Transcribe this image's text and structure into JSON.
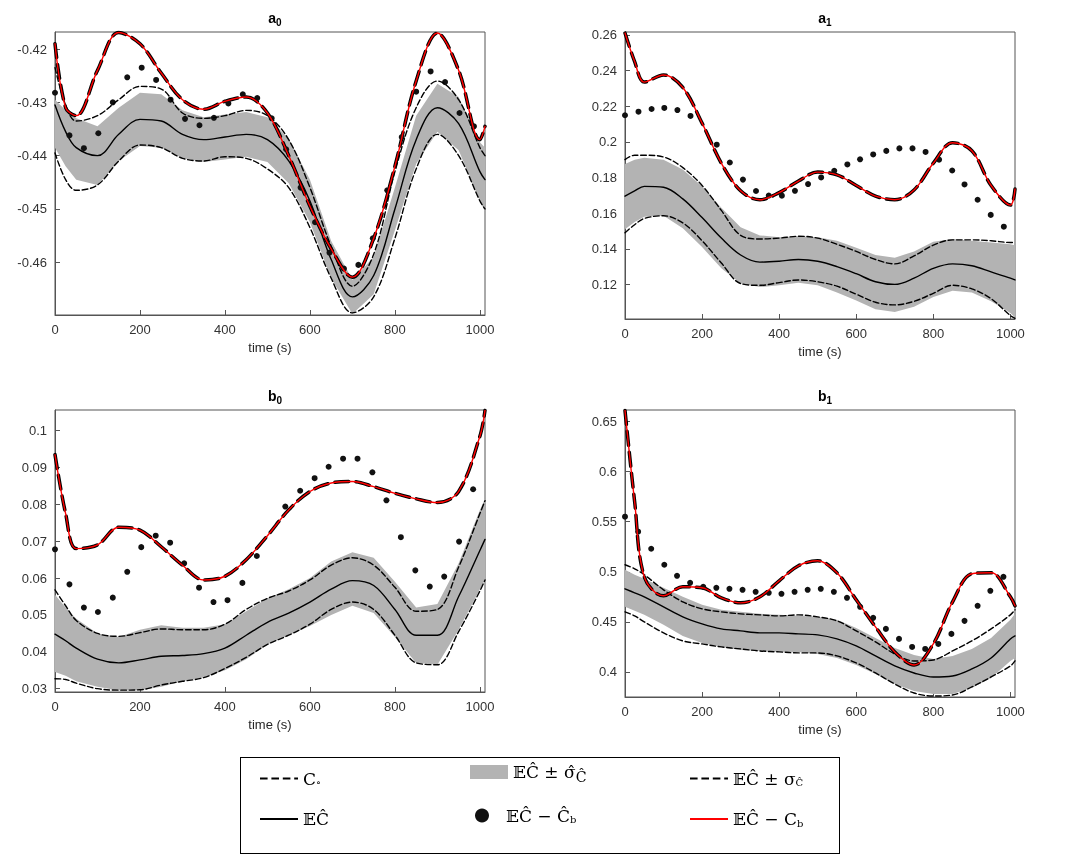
{
  "chart_data": [
    {
      "type": "line",
      "title": "a$_{0}$",
      "xlabel": "time (s)",
      "xlim": [
        0,
        1012
      ],
      "xticks": [
        0,
        200,
        400,
        600,
        800,
        1000
      ],
      "ylim": [
        -0.4699,
        -0.4168
      ],
      "yticks": [
        -0.46,
        -0.45,
        -0.44,
        -0.43,
        -0.42
      ],
      "x": [
        0,
        25,
        50,
        100,
        150,
        200,
        250,
        300,
        350,
        400,
        450,
        500,
        550,
        600,
        650,
        700,
        750,
        800,
        850,
        900,
        950,
        1000,
        1012
      ],
      "series": [
        {
          "color": "#000000",
          "line_style": "dashed",
          "values": [
            -0.419,
            -0.431,
            -0.4325,
            -0.424,
            -0.4169,
            -0.419,
            -0.4245,
            -0.4295,
            -0.4313,
            -0.4298,
            -0.429,
            -0.432,
            -0.44,
            -0.4495,
            -0.4575,
            -0.4628,
            -0.4555,
            -0.442,
            -0.426,
            -0.417,
            -0.424,
            -0.437,
            -0.4345
          ]
        },
        {
          "color": "#000000",
          "line_style": "solid",
          "values": [
            -0.4305,
            -0.4355,
            -0.4385,
            -0.44,
            -0.436,
            -0.4332,
            -0.4335,
            -0.436,
            -0.437,
            -0.4365,
            -0.436,
            -0.437,
            -0.441,
            -0.4485,
            -0.4595,
            -0.4665,
            -0.4625,
            -0.45,
            -0.437,
            -0.431,
            -0.434,
            -0.443,
            -0.4445
          ],
          "upper": [
            -0.4295,
            -0.4315,
            -0.433,
            -0.4345,
            -0.431,
            -0.4282,
            -0.4285,
            -0.4315,
            -0.4328,
            -0.4323,
            -0.4318,
            -0.4328,
            -0.4368,
            -0.4445,
            -0.456,
            -0.4633,
            -0.459,
            -0.446,
            -0.4325,
            -0.4265,
            -0.429,
            -0.4375,
            -0.4385
          ],
          "lower": [
            -0.4385,
            -0.442,
            -0.4445,
            -0.4455,
            -0.441,
            -0.4382,
            -0.4385,
            -0.4405,
            -0.4412,
            -0.4407,
            -0.4402,
            -0.4412,
            -0.4452,
            -0.4525,
            -0.463,
            -0.4697,
            -0.466,
            -0.454,
            -0.4415,
            -0.4355,
            -0.439,
            -0.4485,
            -0.4505
          ]
        },
        {
          "type": "scatter",
          "marker": "circle",
          "color": "#111111",
          "x": [
            0,
            34,
            68,
            102,
            136,
            170,
            204,
            238,
            272,
            306,
            340,
            374,
            408,
            442,
            476,
            510,
            544,
            578,
            612,
            646,
            680,
            714,
            748,
            782,
            816,
            850,
            884,
            918,
            952,
            986
          ],
          "values": [
            -0.4282,
            -0.4362,
            -0.4386,
            -0.4358,
            -0.43,
            -0.4253,
            -0.4235,
            -0.4258,
            -0.4295,
            -0.4331,
            -0.4343,
            -0.4329,
            -0.4302,
            -0.4285,
            -0.4292,
            -0.433,
            -0.4388,
            -0.446,
            -0.4525,
            -0.4582,
            -0.4612,
            -0.4605,
            -0.4555,
            -0.4465,
            -0.4365,
            -0.428,
            -0.4242,
            -0.4262,
            -0.432,
            -0.4345
          ]
        },
        {
          "color": "#000000",
          "line_style": "dashed",
          "values": [
            -0.4235,
            -0.4305,
            -0.4335,
            -0.4325,
            -0.4295,
            -0.427,
            -0.4275,
            -0.432,
            -0.433,
            -0.4325,
            -0.4315,
            -0.4325,
            -0.437,
            -0.446,
            -0.457,
            -0.4645,
            -0.4585,
            -0.443,
            -0.431,
            -0.426,
            -0.4295,
            -0.4385,
            -0.44
          ]
        },
        {
          "color": "#000000",
          "line_style": "dashed",
          "values": [
            -0.4395,
            -0.4445,
            -0.4465,
            -0.4455,
            -0.441,
            -0.438,
            -0.4385,
            -0.4405,
            -0.441,
            -0.4402,
            -0.4405,
            -0.4425,
            -0.446,
            -0.4535,
            -0.463,
            -0.4695,
            -0.4665,
            -0.4555,
            -0.4425,
            -0.436,
            -0.44,
            -0.4485,
            -0.45
          ]
        },
        {
          "color": "#ff0000",
          "line_style": "solid",
          "values": [
            -0.419,
            -0.431,
            -0.4325,
            -0.424,
            -0.4169,
            -0.419,
            -0.4245,
            -0.4295,
            -0.4313,
            -0.4298,
            -0.429,
            -0.432,
            -0.44,
            -0.4495,
            -0.4575,
            -0.4628,
            -0.4555,
            -0.442,
            -0.426,
            -0.417,
            -0.424,
            -0.437,
            -0.4345
          ]
        }
      ]
    },
    {
      "type": "line",
      "title": "a$_{1}$",
      "xlabel": "time (s)",
      "xlim": [
        0,
        1012
      ],
      "xticks": [
        0,
        200,
        400,
        600,
        800,
        1000
      ],
      "ylim": [
        0.1006,
        0.2616
      ],
      "yticks": [
        0.12,
        0.14,
        0.16,
        0.18,
        0.2,
        0.22,
        0.24,
        0.26
      ],
      "x": [
        0,
        25,
        50,
        100,
        150,
        200,
        250,
        300,
        350,
        400,
        450,
        500,
        550,
        600,
        650,
        700,
        750,
        800,
        850,
        900,
        950,
        1000,
        1012
      ],
      "series": [
        {
          "color": "#000000",
          "line_style": "dashed",
          "values": [
            0.261,
            0.245,
            0.2335,
            0.2375,
            0.2305,
            0.2105,
            0.188,
            0.1725,
            0.1675,
            0.1715,
            0.178,
            0.183,
            0.1815,
            0.1755,
            0.1695,
            0.1675,
            0.173,
            0.188,
            0.1995,
            0.195,
            0.1755,
            0.1645,
            0.1735
          ]
        },
        {
          "color": "#000000",
          "line_style": "solid",
          "values": [
            0.1695,
            0.1725,
            0.175,
            0.1745,
            0.168,
            0.1575,
            0.146,
            0.1365,
            0.1325,
            0.133,
            0.134,
            0.133,
            0.13,
            0.126,
            0.1215,
            0.12,
            0.1235,
            0.129,
            0.1315,
            0.1305,
            0.127,
            0.1235,
            0.1225
          ],
          "upper": [
            0.1875,
            0.19,
            0.191,
            0.19,
            0.1845,
            0.175,
            0.163,
            0.152,
            0.1475,
            0.1465,
            0.147,
            0.1465,
            0.1445,
            0.1405,
            0.1365,
            0.135,
            0.1385,
            0.144,
            0.1455,
            0.1445,
            0.1435,
            0.1425,
            0.142
          ],
          "lower": [
            0.151,
            0.155,
            0.158,
            0.1585,
            0.1515,
            0.141,
            0.129,
            0.1205,
            0.1185,
            0.1195,
            0.121,
            0.1195,
            0.1155,
            0.111,
            0.106,
            0.1045,
            0.1075,
            0.113,
            0.1165,
            0.1155,
            0.1105,
            0.104,
            0.1015
          ]
        },
        {
          "type": "scatter",
          "marker": "circle",
          "color": "#111111",
          "x": [
            0,
            35,
            69,
            102,
            136,
            170,
            238,
            272,
            306,
            340,
            373,
            407,
            441,
            475,
            509,
            543,
            577,
            610,
            644,
            678,
            712,
            746,
            780,
            815,
            849,
            881,
            915,
            949,
            983
          ],
          "values": [
            0.2149,
            0.2169,
            0.2184,
            0.219,
            0.2178,
            0.2145,
            0.1984,
            0.1884,
            0.1788,
            0.1724,
            0.1698,
            0.1698,
            0.1725,
            0.1763,
            0.18,
            0.1837,
            0.1873,
            0.1902,
            0.1929,
            0.1949,
            0.1963,
            0.1963,
            0.1943,
            0.19,
            0.1839,
            0.1761,
            0.1675,
            0.159,
            0.1524
          ]
        },
        {
          "color": "#000000",
          "line_style": "dashed",
          "values": [
            0.19,
            0.1925,
            0.1925,
            0.1915,
            0.1855,
            0.1755,
            0.1615,
            0.1475,
            0.1455,
            0.146,
            0.147,
            0.146,
            0.1425,
            0.1385,
            0.134,
            0.1315,
            0.136,
            0.142,
            0.145,
            0.145,
            0.1445,
            0.1435,
            0.1435
          ]
        },
        {
          "color": "#000000",
          "line_style": "dashed",
          "values": [
            0.149,
            0.1535,
            0.157,
            0.1585,
            0.1545,
            0.1445,
            0.132,
            0.1205,
            0.1195,
            0.121,
            0.1225,
            0.1215,
            0.119,
            0.1145,
            0.11,
            0.1085,
            0.1105,
            0.115,
            0.1195,
            0.1175,
            0.112,
            0.1025,
            0.101
          ]
        },
        {
          "color": "#ff0000",
          "line_style": "solid",
          "values": [
            0.261,
            0.245,
            0.2335,
            0.2375,
            0.2305,
            0.2105,
            0.188,
            0.1725,
            0.1675,
            0.1715,
            0.178,
            0.183,
            0.1815,
            0.1755,
            0.1695,
            0.1675,
            0.173,
            0.188,
            0.1995,
            0.195,
            0.1755,
            0.1645,
            0.1735
          ]
        }
      ]
    },
    {
      "type": "line",
      "title": "b$_{0}$",
      "xlabel": "time (s)",
      "xlim": [
        0,
        1012
      ],
      "xticks": [
        0,
        200,
        400,
        600,
        800,
        1000
      ],
      "ylim": [
        0.0291,
        0.1056
      ],
      "yticks": [
        0.03,
        0.04,
        0.05,
        0.06,
        0.07,
        0.08,
        0.09,
        0.1
      ],
      "x": [
        0,
        25,
        50,
        100,
        150,
        200,
        250,
        300,
        350,
        400,
        450,
        500,
        550,
        600,
        650,
        700,
        750,
        800,
        850,
        900,
        950,
        1000,
        1012
      ],
      "series": [
        {
          "color": "#000000",
          "line_style": "dashed",
          "values": [
            0.0935,
            0.0775,
            0.068,
            0.069,
            0.0738,
            0.073,
            0.0685,
            0.0635,
            0.0595,
            0.0605,
            0.065,
            0.0715,
            0.0785,
            0.0835,
            0.0858,
            0.0862,
            0.0848,
            0.083,
            0.0815,
            0.0805,
            0.0835,
            0.0985,
            0.1055
          ]
        },
        {
          "color": "#000000",
          "line_style": "solid",
          "values": [
            0.0448,
            0.043,
            0.041,
            0.038,
            0.037,
            0.0378,
            0.0388,
            0.039,
            0.0395,
            0.041,
            0.0445,
            0.048,
            0.0505,
            0.0535,
            0.057,
            0.0593,
            0.058,
            0.0515,
            0.0445,
            0.0445,
            0.055,
            0.0675,
            0.0705
          ],
          "upper": [
            0.0555,
            0.052,
            0.049,
            0.045,
            0.044,
            0.046,
            0.0472,
            0.0465,
            0.0465,
            0.0475,
            0.051,
            0.0545,
            0.057,
            0.06,
            0.0645,
            0.067,
            0.0655,
            0.059,
            0.052,
            0.053,
            0.064,
            0.0785,
            0.0815
          ],
          "lower": [
            0.0345,
            0.0335,
            0.032,
            0.0305,
            0.0295,
            0.0296,
            0.0305,
            0.032,
            0.033,
            0.035,
            0.038,
            0.042,
            0.0445,
            0.047,
            0.05,
            0.0525,
            0.0505,
            0.044,
            0.037,
            0.0365,
            0.046,
            0.057,
            0.0595
          ]
        },
        {
          "type": "scatter",
          "marker": "circle",
          "color": "#111111",
          "x": [
            0,
            34,
            68,
            101,
            136,
            170,
            203,
            237,
            271,
            304,
            339,
            373,
            406,
            441,
            475,
            542,
            577,
            611,
            644,
            678,
            712,
            747,
            780,
            814,
            848,
            882,
            916,
            951,
            984
          ],
          "values": [
            0.0678,
            0.0583,
            0.052,
            0.0508,
            0.0547,
            0.0617,
            0.0684,
            0.0715,
            0.0696,
            0.064,
            0.0574,
            0.0535,
            0.054,
            0.0587,
            0.066,
            0.0794,
            0.0837,
            0.0871,
            0.0902,
            0.0924,
            0.0924,
            0.0887,
            0.0811,
            0.0711,
            0.0621,
            0.0577,
            0.0604,
            0.0699,
            0.0841
          ]
        },
        {
          "color": "#000000",
          "line_style": "dashed",
          "values": [
            0.0568,
            0.0525,
            0.0485,
            0.045,
            0.0442,
            0.0452,
            0.0462,
            0.046,
            0.046,
            0.0475,
            0.0515,
            0.0545,
            0.0565,
            0.0595,
            0.0635,
            0.0655,
            0.0635,
            0.0575,
            0.051,
            0.0515,
            0.063,
            0.0775,
            0.081
          ]
        },
        {
          "color": "#000000",
          "line_style": "dashed",
          "values": [
            0.0327,
            0.0325,
            0.0315,
            0.03,
            0.0296,
            0.0297,
            0.031,
            0.032,
            0.033,
            0.0355,
            0.0385,
            0.042,
            0.0445,
            0.0475,
            0.0515,
            0.0535,
            0.0515,
            0.0445,
            0.037,
            0.0365,
            0.0455,
            0.0565,
            0.0595
          ]
        },
        {
          "color": "#ff0000",
          "line_style": "solid",
          "values": [
            0.0935,
            0.0775,
            0.068,
            0.069,
            0.0738,
            0.073,
            0.0685,
            0.0635,
            0.0595,
            0.0605,
            0.065,
            0.0715,
            0.0785,
            0.0835,
            0.0858,
            0.0862,
            0.0848,
            0.083,
            0.0815,
            0.0805,
            0.0835,
            0.0985,
            0.1055
          ]
        }
      ]
    },
    {
      "type": "line",
      "title": "b$_{1}$",
      "xlabel": "time (s)",
      "xlim": [
        0,
        1012
      ],
      "xticks": [
        0,
        200,
        400,
        600,
        800,
        1000
      ],
      "ylim": [
        0.375,
        0.6615
      ],
      "yticks": [
        0.4,
        0.45,
        0.5,
        0.55,
        0.6,
        0.65
      ],
      "legend": "bottom",
      "annotations": [
        "𝔼Ĉ ± σ̂$_{Ĉ}$"
      ],
      "x": [
        0,
        25,
        50,
        100,
        150,
        200,
        250,
        300,
        350,
        400,
        450,
        500,
        550,
        600,
        650,
        700,
        750,
        800,
        850,
        900,
        950,
        1000,
        1012
      ],
      "series": [
        {
          "name": "C$_{∘}$",
          "color": "#000000",
          "line_style": "dashed",
          "values": [
            0.661,
            0.57,
            0.495,
            0.476,
            0.485,
            0.484,
            0.474,
            0.469,
            0.475,
            0.491,
            0.506,
            0.511,
            0.499,
            0.472,
            0.445,
            0.42,
            0.407,
            0.428,
            0.47,
            0.498,
            0.499,
            0.475,
            0.466
          ]
        },
        {
          "name": "𝔼Ĉ",
          "color": "#000000",
          "line_style": "solid",
          "values": [
            0.483,
            0.479,
            0.475,
            0.465,
            0.455,
            0.448,
            0.443,
            0.441,
            0.439,
            0.439,
            0.438,
            0.437,
            0.433,
            0.426,
            0.416,
            0.406,
            0.399,
            0.395,
            0.396,
            0.403,
            0.414,
            0.433,
            0.436
          ],
          "upper": [
            0.502,
            0.497,
            0.493,
            0.484,
            0.475,
            0.467,
            0.462,
            0.46,
            0.458,
            0.457,
            0.456,
            0.455,
            0.452,
            0.444,
            0.434,
            0.424,
            0.417,
            0.413,
            0.416,
            0.423,
            0.434,
            0.452,
            0.458
          ],
          "lower": [
            0.465,
            0.461,
            0.457,
            0.447,
            0.436,
            0.429,
            0.425,
            0.422,
            0.421,
            0.42,
            0.42,
            0.418,
            0.414,
            0.407,
            0.398,
            0.388,
            0.381,
            0.378,
            0.378,
            0.384,
            0.394,
            0.411,
            0.414
          ]
        },
        {
          "name": "𝔼Ĉ − Ĉ$_{b}$",
          "type": "scatter",
          "marker": "circle",
          "color": "#111111",
          "x": [
            0,
            34,
            68,
            102,
            135,
            169,
            203,
            237,
            271,
            305,
            339,
            373,
            406,
            440,
            474,
            508,
            542,
            576,
            610,
            644,
            677,
            711,
            745,
            779,
            813,
            847,
            881,
            915,
            948,
            982
          ],
          "values": [
            0.555,
            0.54,
            0.523,
            0.507,
            0.496,
            0.489,
            0.485,
            0.484,
            0.483,
            0.482,
            0.48,
            0.479,
            0.478,
            0.48,
            0.482,
            0.483,
            0.48,
            0.474,
            0.465,
            0.454,
            0.443,
            0.433,
            0.425,
            0.423,
            0.428,
            0.438,
            0.451,
            0.466,
            0.481,
            0.495
          ]
        },
        {
          "name": "𝔼Ĉ ± σ$_{Ĉ}$",
          "color": "#000000",
          "line_style": "dashed",
          "values": [
            0.507,
            0.503,
            0.497,
            0.482,
            0.47,
            0.463,
            0.46,
            0.458,
            0.457,
            0.456,
            0.457,
            0.455,
            0.451,
            0.441,
            0.43,
            0.418,
            0.411,
            0.412,
            0.421,
            0.431,
            0.443,
            0.457,
            0.462
          ]
        },
        {
          "color": "#000000",
          "line_style": "dashed",
          "values": [
            0.46,
            0.456,
            0.45,
            0.439,
            0.431,
            0.428,
            0.425,
            0.423,
            0.421,
            0.42,
            0.419,
            0.419,
            0.416,
            0.409,
            0.399,
            0.388,
            0.379,
            0.376,
            0.377,
            0.385,
            0.395,
            0.406,
            0.411
          ]
        },
        {
          "name": "𝔼Ĉ − C$_{b}$",
          "color": "#ff0000",
          "line_style": "solid",
          "values": [
            0.661,
            0.57,
            0.495,
            0.476,
            0.485,
            0.484,
            0.474,
            0.469,
            0.475,
            0.491,
            0.506,
            0.511,
            0.499,
            0.472,
            0.445,
            0.42,
            0.407,
            0.428,
            0.47,
            0.498,
            0.499,
            0.475,
            0.466
          ]
        }
      ]
    }
  ]
}
